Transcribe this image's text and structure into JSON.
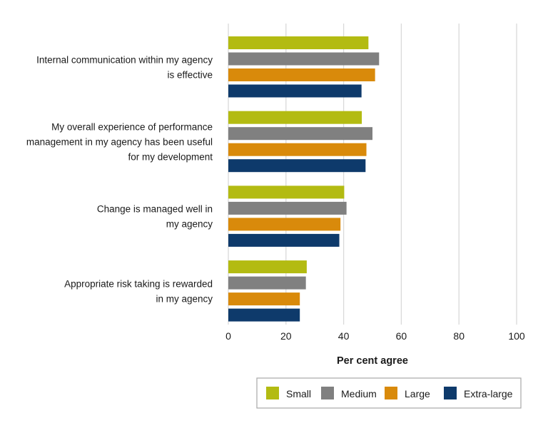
{
  "chart_data": {
    "type": "bar",
    "orientation": "horizontal",
    "title": "",
    "xlabel": "Per cent agree",
    "ylabel": "",
    "xlim": [
      0,
      100
    ],
    "xticks": [
      0,
      20,
      40,
      60,
      80,
      100
    ],
    "grid": "vertical",
    "legend_position": "bottom-right",
    "categories": [
      [
        "Internal communication within my agency",
        "is effective"
      ],
      [
        "My overall experience of performance",
        "management in my agency has been useful",
        "for my development"
      ],
      [
        "Change is managed well in",
        "my agency"
      ],
      [
        "Appropriate risk taking is rewarded",
        "in my agency"
      ]
    ],
    "series": [
      {
        "name": "Small",
        "color": "#b3bb12",
        "values": [
          48.6,
          46.3,
          40.2,
          27.2
        ]
      },
      {
        "name": "Medium",
        "color": "#808080",
        "values": [
          52.3,
          50.0,
          41.0,
          26.9
        ]
      },
      {
        "name": "Large",
        "color": "#d98a0b",
        "values": [
          50.9,
          47.9,
          38.9,
          24.8
        ]
      },
      {
        "name": "Extra-large",
        "color": "#0e3a6b",
        "values": [
          46.2,
          47.6,
          38.5,
          24.8
        ]
      }
    ]
  }
}
